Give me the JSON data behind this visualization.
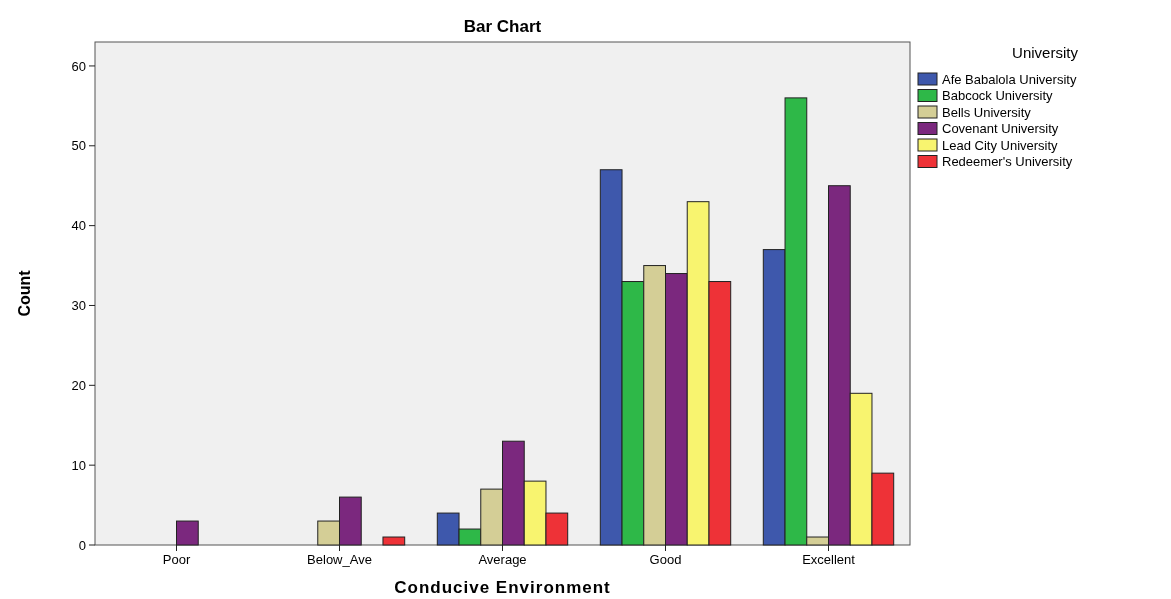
{
  "chart_data": {
    "type": "bar",
    "title": "Bar Chart",
    "xlabel": "Conducive Environment",
    "ylabel": "Count",
    "legend_title": "University",
    "legend": "top right",
    "grid": false,
    "categories": [
      "Poor",
      "Below_Ave",
      "Average",
      "Good",
      "Excellent"
    ],
    "ylim": [
      0,
      63
    ],
    "yticks": [
      0,
      10,
      20,
      30,
      40,
      50,
      60
    ],
    "series": [
      {
        "name": "Afe Babalola University",
        "color": "#3e58ac",
        "values": [
          null,
          null,
          4,
          47,
          37
        ]
      },
      {
        "name": "Babcock University",
        "color": "#2eb848",
        "values": [
          null,
          null,
          2,
          33,
          56
        ]
      },
      {
        "name": "Bells University",
        "color": "#d4ce96",
        "values": [
          null,
          3,
          7,
          35,
          1
        ]
      },
      {
        "name": "Covenant University",
        "color": "#7b287e",
        "values": [
          3,
          6,
          13,
          34,
          45
        ]
      },
      {
        "name": "Lead City University",
        "color": "#f8f46f",
        "values": [
          null,
          null,
          8,
          43,
          19
        ]
      },
      {
        "name": "Redeemer's University",
        "color": "#ee3237",
        "values": [
          null,
          1,
          4,
          33,
          9
        ]
      }
    ]
  }
}
